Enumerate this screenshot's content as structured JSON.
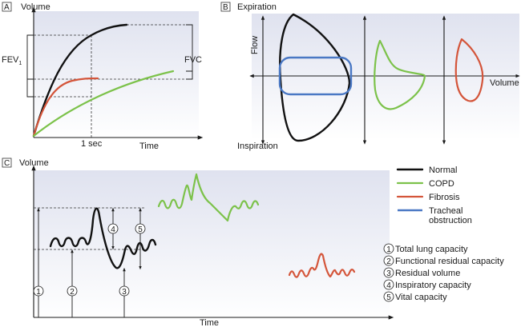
{
  "colors": {
    "normal": "#111111",
    "copd": "#7cc24a",
    "fibrosis": "#d4553a",
    "tracheal": "#4a78c4",
    "panel_gradient_top": "#dfe2ef",
    "panel_gradient_bottom": "#ffffff"
  },
  "panel_a": {
    "letter": "A",
    "y_label": "Volume",
    "x_label": "Time",
    "tick_label": "1 sec",
    "fev1_label": "FEV",
    "fev1_subscript": "1",
    "fvc_label": "FVC"
  },
  "panel_b": {
    "letter": "B",
    "top_label": "Expiration",
    "bottom_label": "Inspiration",
    "y_label": "Flow",
    "x_label": "Volume"
  },
  "panel_c": {
    "letter": "C",
    "y_label": "Volume",
    "x_label": "Time",
    "markers": [
      "1",
      "2",
      "3",
      "4",
      "5"
    ]
  },
  "legend": {
    "items": [
      {
        "label": "Normal",
        "key": "normal"
      },
      {
        "label": "COPD",
        "key": "copd"
      },
      {
        "label": "Fibrosis",
        "key": "fibrosis"
      },
      {
        "label": "Tracheal obstruction",
        "label_line1": "Tracheal",
        "label_line2": "obstruction",
        "key": "tracheal"
      }
    ]
  },
  "capacities": {
    "items": [
      {
        "num": "1",
        "label": "Total lung capacity"
      },
      {
        "num": "2",
        "label": "Functional residual capacity"
      },
      {
        "num": "3",
        "label": "Residual volume"
      },
      {
        "num": "4",
        "label": "Inspiratory capacity"
      },
      {
        "num": "5",
        "label": "Vital capacity"
      }
    ]
  }
}
